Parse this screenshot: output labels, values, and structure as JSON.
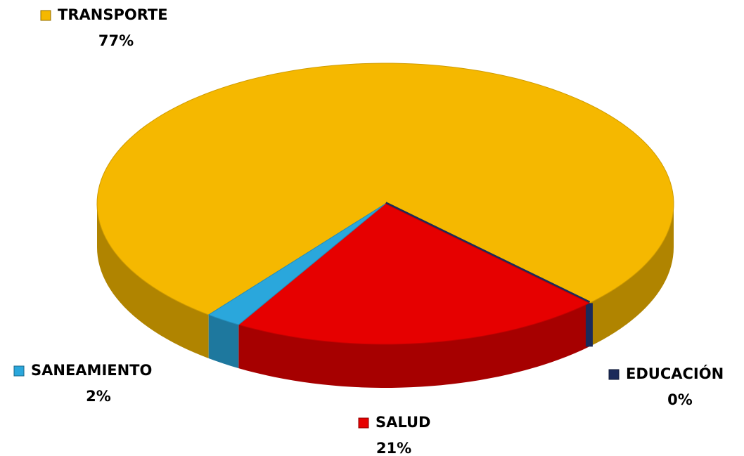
{
  "chart_data": {
    "type": "pie",
    "categories": [
      "TRANSPORTE",
      "EDUCACIÓN",
      "SALUD",
      "SANEAMIENTO"
    ],
    "values": [
      77,
      0,
      21,
      2
    ],
    "value_labels": [
      "77%",
      "0%",
      "21%",
      "2%"
    ],
    "colors": [
      "#f5b800",
      "#1a2a5a",
      "#e60000",
      "#2aa7dc"
    ]
  }
}
